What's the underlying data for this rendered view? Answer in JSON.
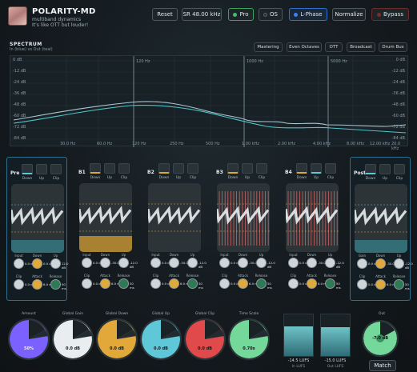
{
  "header": {
    "title": "POLARITY-MD",
    "subtitle1": "multiband dynamics",
    "subtitle2": "It's like OTT but louder!",
    "buttons": {
      "reset": "Reset",
      "sr": "SR 48.00 kHz",
      "pro": "Pro",
      "os": "OS",
      "lphase": "L-Phase",
      "normalize": "Normalize",
      "bypass": "Bypass"
    },
    "colors": {
      "pro": "#3fc06a",
      "lphase": "#3b82f6",
      "bypass": "#7a2b2b"
    }
  },
  "spectrum": {
    "title": "SPECTRUM",
    "subtitle": "In (blue) vs Out (teal)",
    "presets": [
      "Mastering",
      "Even Octaves",
      "OTT",
      "Broadcast",
      "Drum Bus"
    ],
    "db_labels_left": [
      "0 dB",
      "-12 dB",
      "-24 dB",
      "-36 dB",
      "-48 dB",
      "-60 dB",
      "-72 dB",
      "-84 dB"
    ],
    "db_labels_right": [
      "0 dB",
      "-12 dB",
      "-24 dB",
      "-36 dB",
      "-48 dB",
      "-60 dB",
      "-72 dB",
      "-84 dB"
    ],
    "band_markers": [
      "120 Hz",
      "1000 Hz",
      "5000 Hz"
    ],
    "freq_labels": [
      "30.0 Hz",
      "60.0 Hz",
      "120 Hz",
      "250 Hz",
      "500 Hz",
      "1.00 kHz",
      "2.00 kHz",
      "4.00 kHz",
      "8.00 kHz",
      "12.00 kHz",
      "20.0 kHz"
    ]
  },
  "strips": [
    {
      "name": "Pre",
      "buttons": [
        "Down",
        "Up",
        "Clip"
      ],
      "knobs": [
        "Input",
        "Down",
        "Up",
        "Clip",
        "Attack",
        "Release"
      ],
      "values": [
        "0.0 dB",
        "0.0 dB",
        "12.0 dB",
        "0.0 dB",
        "6.0 ms",
        "50 ms"
      ]
    },
    {
      "name": "B1",
      "buttons": [
        "Down",
        "Up",
        "Clip"
      ],
      "knobs": [
        "Input",
        "Down",
        "Up",
        "Clip",
        "Attack",
        "Release"
      ],
      "values": [
        "0.0 dB",
        "-30.0 dB",
        "-12.0 dB",
        "0.0 dB",
        "6.0 ms",
        "50 ms"
      ]
    },
    {
      "name": "B2",
      "buttons": [
        "Down",
        "Up",
        "Clip"
      ],
      "knobs": [
        "Input",
        "Down",
        "Up",
        "Clip",
        "Attack",
        "Release"
      ],
      "values": [
        "0.0 dB",
        "-30.0 dB",
        "-12.0 dB",
        "0.0 dB",
        "6.0 ms",
        "50 ms"
      ]
    },
    {
      "name": "B3",
      "buttons": [
        "Down",
        "Up",
        "Clip"
      ],
      "knobs": [
        "Input",
        "Down",
        "Up",
        "Clip",
        "Attack",
        "Release"
      ],
      "values": [
        "0.0 dB",
        "-30.0 dB",
        "-12.0 dB",
        "0.0 dB",
        "6.0 ms",
        "50 ms"
      ]
    },
    {
      "name": "B4",
      "buttons": [
        "Down",
        "Up",
        "Clip"
      ],
      "knobs": [
        "Input",
        "Down",
        "Up",
        "Clip",
        "Attack",
        "Release"
      ],
      "values": [
        "0.0 dB",
        "-30.0 dB",
        "-12.0 dB",
        "0.0 dB",
        "6.0 ms",
        "50 ms"
      ]
    },
    {
      "name": "Post",
      "buttons": [
        "Down",
        "Up",
        "Clip"
      ],
      "knobs": [
        "Gain",
        "Down",
        "Up",
        "Clip",
        "Attack",
        "Release"
      ],
      "values": [
        "0.0 dB",
        "-30.0 dB",
        "-12.0 dB",
        "0.0 dB",
        "6.0 ms",
        "50 ms"
      ]
    }
  ],
  "global": {
    "knobs": [
      {
        "label": "Amount",
        "value": "50%",
        "color": "#7b61ff"
      },
      {
        "label": "Global Gain",
        "value": "0.0 dB",
        "color": "#e9edef"
      },
      {
        "label": "Global Down",
        "value": "0.0 dB",
        "color": "#e3a83a"
      },
      {
        "label": "Global Up",
        "value": "0.0 dB",
        "color": "#5ec8d8"
      },
      {
        "label": "Global Clip",
        "value": "0.0 dB",
        "color": "#e04a4a"
      },
      {
        "label": "Time Scale",
        "value": "0.70x",
        "color": "#74d89a"
      }
    ],
    "in_lufs": "-14.5 LUFS",
    "in_label": "In LUFS",
    "out_lufs": "-15.0 LUFS",
    "out_label": "Out LUFS",
    "meter_levels": [
      0.72,
      0.7
    ],
    "out": {
      "label": "Out",
      "value": "-7.0 dB",
      "color": "#74d89a"
    },
    "match": "Match"
  }
}
